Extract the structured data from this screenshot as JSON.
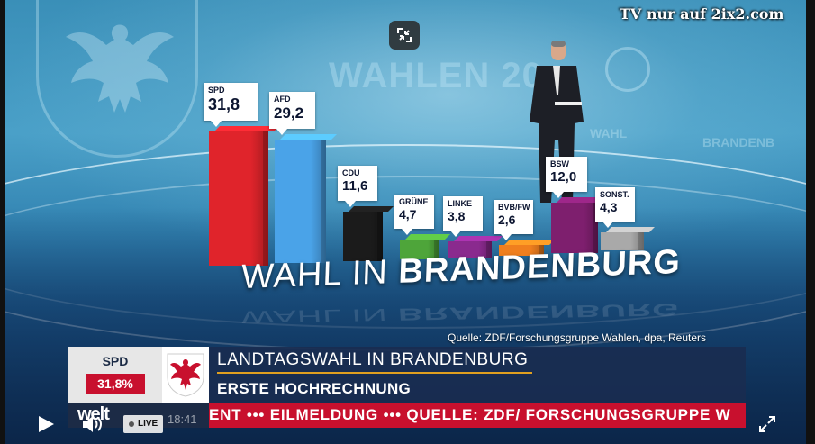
{
  "player": {
    "watermark": "TV nur auf 2ix2.com",
    "live_label": "LIVE",
    "time": "18:41",
    "icons": [
      "exit-fullscreen-icon",
      "play-icon",
      "volume-icon",
      "fullscreen-icon"
    ]
  },
  "studio": {
    "wall_text": "WAHLEN 20",
    "wall_text_small_1": "WAHL",
    "wall_text_small_2": "BRANDENB"
  },
  "graphic": {
    "title_light": "WAHL IN ",
    "title_bold": "BRANDENBURG",
    "source": "Quelle: ZDF/Forschungsgruppe Wahlen, dpa, Reuters",
    "parties": [
      {
        "name": "SPD",
        "value": "31,8",
        "color": "#e0242b",
        "pct": 31.8
      },
      {
        "name": "AFD",
        "value": "29,2",
        "color": "#4aa3e8",
        "pct": 29.2
      },
      {
        "name": "CDU",
        "value": "11,6",
        "color": "#1b1b1b",
        "pct": 11.6
      },
      {
        "name": "GRÜNE",
        "value": "4,7",
        "color": "#4ea53a",
        "pct": 4.7
      },
      {
        "name": "LINKE",
        "value": "3,8",
        "color": "#8a2a8e",
        "pct": 3.8
      },
      {
        "name": "BVB/FW",
        "value": "2,6",
        "color": "#f07f1e",
        "pct": 2.6
      },
      {
        "name": "BSW",
        "value": "12,0",
        "color": "#7e1f6e",
        "pct": 12.0
      },
      {
        "name": "SONST.",
        "value": "4,3",
        "color": "#a9a9a9",
        "pct": 4.3
      }
    ]
  },
  "lower_third": {
    "party": "SPD",
    "percent": "31,8%",
    "headline": "LANDTAGSWAHL IN BRANDENBURG",
    "subline": "ERSTE HOCHRECHNUNG",
    "brand": "welt",
    "ticker": "ENT ••• EILMELDUNG ••• QUELLE: ZDF/ FORSCHUNGSGRUPPE W"
  },
  "colors": {
    "ticker_red": "#c8102e",
    "lower_third_navy": "#1c2b46",
    "accent_underline": "#e0a020"
  }
}
